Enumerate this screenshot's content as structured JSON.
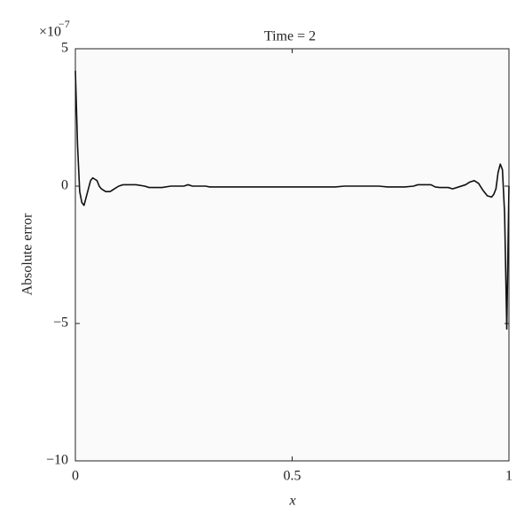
{
  "chart_data": {
    "type": "line",
    "title": "Time = 2",
    "x_label": "x",
    "y_label": "Absolute error",
    "y_multiplier": "×10",
    "y_multiplier_exponent": "−7",
    "x": [
      0,
      0.005,
      0.01,
      0.015,
      0.02,
      0.025,
      0.03,
      0.035,
      0.04,
      0.045,
      0.05,
      0.055,
      0.06,
      0.07,
      0.08,
      0.09,
      0.1,
      0.11,
      0.12,
      0.14,
      0.16,
      0.17,
      0.2,
      0.22,
      0.23,
      0.25,
      0.26,
      0.27,
      0.3,
      0.31,
      0.4,
      0.5,
      0.52,
      0.6,
      0.62,
      0.7,
      0.72,
      0.76,
      0.78,
      0.79,
      0.82,
      0.83,
      0.84,
      0.86,
      0.87,
      0.88,
      0.9,
      0.91,
      0.92,
      0.93,
      0.94,
      0.95,
      0.96,
      0.965,
      0.97,
      0.975,
      0.98,
      0.985,
      0.99,
      0.995,
      1
    ],
    "series": [
      {
        "name": "Absolute error",
        "color": "#111111",
        "values": [
          4.2,
          1.5,
          -0.2,
          -0.6,
          -0.7,
          -0.4,
          -0.1,
          0.2,
          0.3,
          0.25,
          0.2,
          0,
          -0.1,
          -0.2,
          -0.2,
          -0.1,
          0,
          0.05,
          0.05,
          0.05,
          0,
          -0.05,
          -0.05,
          0,
          0,
          0,
          0.05,
          0,
          0,
          -0.03,
          -0.03,
          -0.03,
          -0.03,
          -0.03,
          0,
          0,
          -0.03,
          -0.03,
          0,
          0.05,
          0.05,
          -0.03,
          -0.05,
          -0.05,
          -0.1,
          -0.05,
          0.05,
          0.15,
          0.2,
          0.1,
          -0.15,
          -0.35,
          -0.4,
          -0.3,
          -0.1,
          0.5,
          0.8,
          0.6,
          -1,
          -5.2,
          0
        ]
      }
    ],
    "xlim": [
      0,
      1
    ],
    "ylim": [
      -10,
      5
    ],
    "xticks": [
      0,
      0.5,
      1
    ],
    "yticks": [
      {
        "value": -10,
        "label": "−10"
      },
      {
        "value": -5,
        "label": "−5"
      },
      0,
      5
    ],
    "grid": false
  }
}
